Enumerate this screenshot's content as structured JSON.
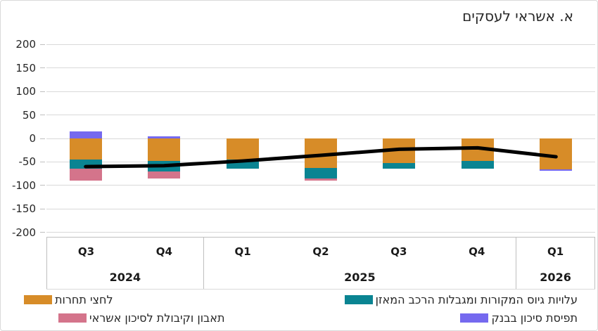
{
  "title": "א. אשראי לעסקים",
  "chart_data": {
    "type": "bar",
    "subtype": "stacked-bar-with-line-overlay",
    "title": "א. אשראי לעסקים",
    "categories": [
      "Q3 2024",
      "Q4 2024",
      "Q1 2025",
      "Q2 2025",
      "Q3 2025",
      "Q4 2025",
      "Q1 2026"
    ],
    "quarter_labels": [
      "Q3",
      "Q4",
      "Q1",
      "Q2",
      "Q3",
      "Q4",
      "Q1"
    ],
    "year_groups": [
      {
        "label": "2024",
        "quarters": [
          "Q3",
          "Q4"
        ]
      },
      {
        "label": "2025",
        "quarters": [
          "Q1",
          "Q2",
          "Q3",
          "Q4"
        ]
      },
      {
        "label": "2026",
        "quarters": [
          "Q1"
        ]
      }
    ],
    "series": [
      {
        "name": "לחצי תחרות",
        "color": "#d78c28",
        "values": [
          -45,
          -48,
          -45,
          -63,
          -52,
          -48,
          -66
        ]
      },
      {
        "name": "עלויות גיוס המקורות ומגבלות הרכב המאזן",
        "color": "#0a8492",
        "values": [
          -20,
          -22,
          -20,
          -22,
          -13,
          -17,
          0
        ]
      },
      {
        "name": "תאבון וקיבולת לסיכון אשראי",
        "color": "#d4748b",
        "values": [
          -25,
          -15,
          0,
          -5,
          0,
          0,
          0
        ]
      },
      {
        "name": "תפיסת סיכון בבנק",
        "color": "#7569ef",
        "values": [
          15,
          5,
          0,
          0,
          0,
          0,
          -3
        ]
      }
    ],
    "line": {
      "name": "net-balance-line",
      "color": "#000000",
      "values": [
        -60,
        -58,
        -48,
        -36,
        -23,
        -20,
        -39
      ]
    },
    "ylim": [
      -200,
      200
    ],
    "y_ticks": [
      200,
      150,
      100,
      50,
      0,
      -50,
      -100,
      -150,
      -200
    ],
    "grid": true,
    "legend_position": "bottom"
  },
  "legend": {
    "items": [
      {
        "label": "לחצי תחרות",
        "color": "#d78c28"
      },
      {
        "label": "עלויות גיוס המקורות ומגבלות הרכב המאזן",
        "color": "#0a8492"
      },
      {
        "label": "תאבון וקיבולת לסיכון אשראי",
        "color": "#d4748b"
      },
      {
        "label": "תפיסת סיכון בבנק",
        "color": "#7569ef"
      }
    ]
  },
  "colors": {
    "gridline": "#d9d9d9",
    "axis_line": "#bfbfbf",
    "text": "#262626",
    "line": "#000000"
  }
}
